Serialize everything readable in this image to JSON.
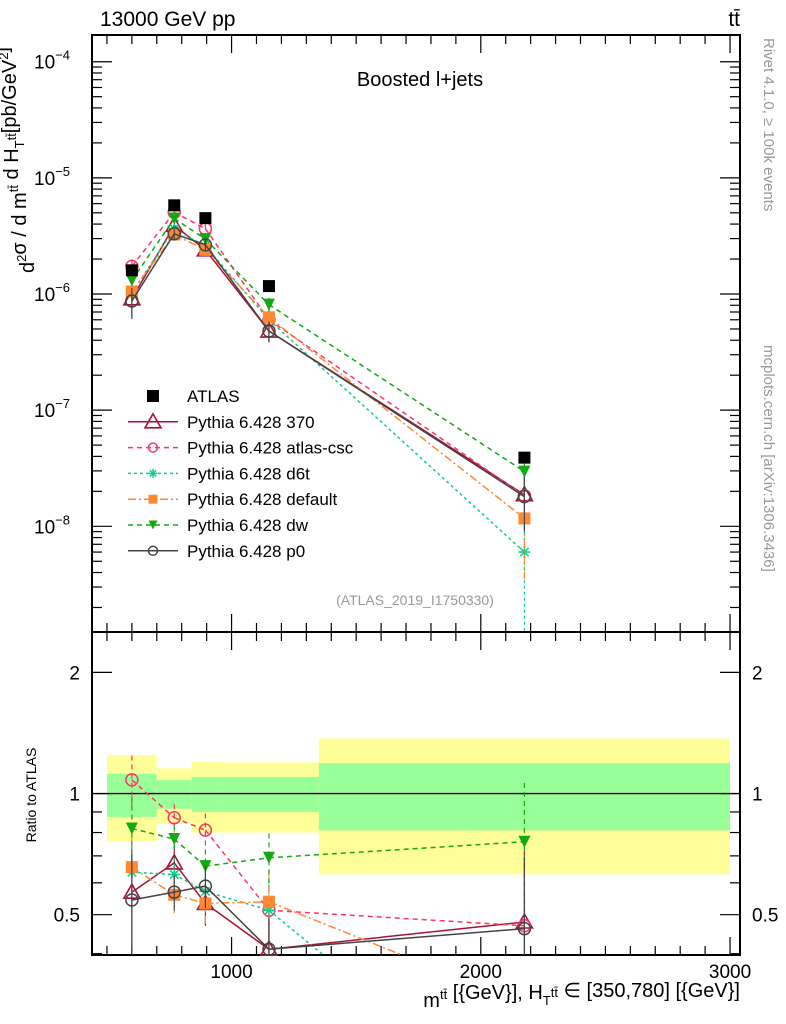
{
  "chart_data": {
    "type": "scatter",
    "title_left": "13000 GeV pp",
    "title_right": "tt̄",
    "plot_label": "Boosted l+jets",
    "analysis_id": "(ATLAS_2019_I1750330)",
    "side_text_top": "Rivet 4.1.0, ≥ 100k events",
    "side_text_bottom": "mcplots.cern.ch [arXiv:1306.3436]",
    "ylabel_parts": [
      {
        "t": "d"
      },
      {
        "t": "2",
        "sup": true
      },
      {
        "t": "σ / d m"
      },
      {
        "t": "tt̄",
        "sup": true
      },
      {
        "t": " d H"
      },
      {
        "t": "T",
        "sub": true
      },
      {
        "t": "tt̄",
        "sup": true
      },
      {
        "t": "[pb/GeV"
      },
      {
        "t": "2",
        "sup": true
      },
      {
        "t": "]"
      }
    ],
    "xlabel_parts": [
      {
        "t": "m"
      },
      {
        "t": "tt̄",
        "sup": true
      },
      {
        "t": " [{GeV}], H"
      },
      {
        "t": "T",
        "sub": true
      },
      {
        "t": "tt̄",
        "sup": true
      },
      {
        "t": " ∈ [350,780] [{GeV}]"
      }
    ],
    "ratio_ylabel": "Ratio to ATLAS",
    "xlim": [
      440,
      3040
    ],
    "ylim_log10": [
      -8.91,
      -3.77
    ],
    "ratio_ylim": [
      0.397,
      2.52
    ],
    "x_major_ticks": [
      1000,
      2000,
      3000
    ],
    "x_tick_labels": [
      "1000",
      "2000",
      "3000"
    ],
    "y_major_ticks_exp": [
      -4,
      -5,
      -6,
      -7,
      -8
    ],
    "y_tick_labels": [
      {
        "base": "10",
        "exp": "−4"
      },
      {
        "base": "10",
        "exp": "−5"
      },
      {
        "base": "10",
        "exp": "−6"
      },
      {
        "base": "10",
        "exp": "−7"
      },
      {
        "base": "10",
        "exp": "−8"
      }
    ],
    "ratio_major_ticks": [
      0.5,
      1,
      2
    ],
    "ratio_tick_labels": [
      "0.5",
      "1",
      "2"
    ],
    "bin_edges": [
      500,
      700,
      840,
      950,
      1350,
      3000
    ],
    "x": [
      600,
      770,
      895,
      1150,
      2175
    ],
    "data": {
      "name": "ATLAS",
      "color": "#000000",
      "values": [
        1.6e-06,
        5.8e-06,
        4.5e-06,
        1.17e-06,
        3.9e-08
      ],
      "stat_band": [
        [
          0.875,
          1.12
        ],
        [
          0.917,
          1.08
        ],
        [
          0.9,
          1.1
        ],
        [
          0.9,
          1.1
        ],
        [
          0.81,
          1.19
        ]
      ],
      "total_band": [
        [
          0.76,
          1.245
        ],
        [
          0.84,
          1.155
        ],
        [
          0.8,
          1.2
        ],
        [
          0.8,
          1.195
        ],
        [
          0.63,
          1.37
        ]
      ],
      "stat_color": "#99ff99",
      "total_color": "#ffff99"
    },
    "series": [
      {
        "name": "Pythia 6.428 370",
        "color": "#aa1133",
        "marker": "open-triangle",
        "dash": "",
        "values": [
          9.1e-07,
          3.9e-06,
          2.4e-06,
          4.8e-07,
          1.87e-08
        ],
        "rel_err": [
          0.3,
          0.1,
          0.12,
          0.2,
          0.5
        ]
      },
      {
        "name": "Pythia 6.428 atlas-csc",
        "color": "#ff3366",
        "marker": "open-circle",
        "dash": "5,4",
        "values": [
          1.73e-06,
          5.05e-06,
          3.65e-06,
          6e-07,
          1.83e-08
        ],
        "rel_err": [
          0.15,
          0.08,
          0.1,
          0.15,
          0.5
        ]
      },
      {
        "name": "Pythia 6.428 d6t",
        "color": "#11cc88",
        "marker": "asterisk",
        "dash": "3,3",
        "values": [
          1.02e-06,
          3.65e-06,
          2.57e-06,
          6e-07,
          6e-09
        ],
        "rel_err": [
          0.2,
          0.1,
          0.12,
          0.2,
          0.9
        ]
      },
      {
        "name": "Pythia 6.428 default",
        "color": "#ff8833",
        "marker": "filled-square",
        "dash": "8,3,2,3",
        "values": [
          1.05e-06,
          3.25e-06,
          2.4e-06,
          6.3e-07,
          1.17e-08
        ],
        "rel_err": [
          0.2,
          0.1,
          0.12,
          0.2,
          0.7
        ]
      },
      {
        "name": "Pythia 6.428 dw",
        "color": "#11aa11",
        "marker": "filled-down-triangle",
        "dash": "5,4",
        "values": [
          1.31e-06,
          4.47e-06,
          2.97e-06,
          8.1e-07,
          2.96e-08
        ],
        "rel_err": [
          0.2,
          0.08,
          0.1,
          0.15,
          0.4
        ]
      },
      {
        "name": "Pythia 6.428 p0",
        "color": "#444444",
        "marker": "open-circle",
        "dash": "",
        "values": [
          8.7e-07,
          3.3e-06,
          2.65e-06,
          4.8e-07,
          1.8e-08
        ],
        "rel_err": [
          0.3,
          0.1,
          0.12,
          0.2,
          0.5
        ]
      }
    ],
    "legend_position": "center-left"
  }
}
